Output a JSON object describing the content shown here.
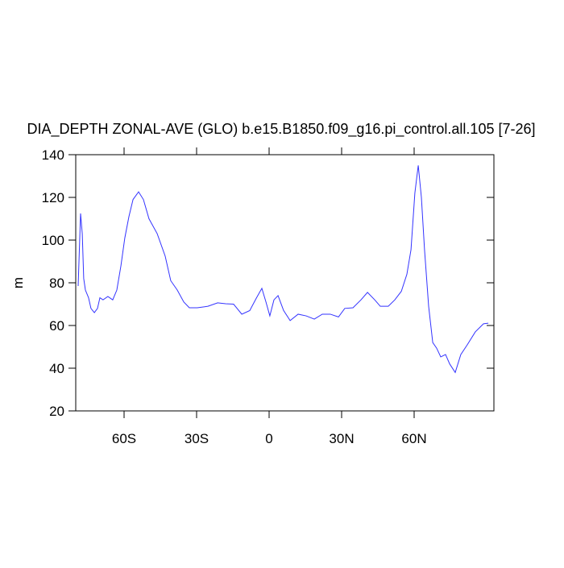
{
  "chart_data": {
    "type": "line",
    "title": "DIA_DEPTH ZONAL-AVE (GLO) b.e15.B1850.f09_g16.pi_control.all.105 [7-26]",
    "y_label": "m",
    "xlim": [
      -80,
      93
    ],
    "ylim": [
      20,
      140
    ],
    "xticks": [
      {
        "value": -60,
        "label": "60S"
      },
      {
        "value": -30,
        "label": "30S"
      },
      0,
      {
        "value": 30,
        "label": "30N"
      },
      {
        "value": 60,
        "label": "60N"
      }
    ],
    "yticks": [
      20,
      40,
      60,
      80,
      100,
      120,
      140
    ],
    "series": [
      {
        "color": "#3333ff",
        "x": [
          -79,
          -78,
          -77.3,
          -76.7,
          -76,
          -74.7,
          -73.7,
          -72.3,
          -71,
          -70,
          -68.7,
          -66.7,
          -64.7,
          -63,
          -61.3,
          -59.7,
          -58,
          -56.3,
          -54,
          -52,
          -49.7,
          -46.3,
          -43,
          -40.7,
          -38,
          -35.3,
          -33,
          -29.7,
          -25.3,
          -21.3,
          -18,
          -14.7,
          -11.3,
          -8,
          -5.3,
          -3,
          -1.3,
          0.3,
          2,
          3.7,
          6,
          8.7,
          12,
          15.3,
          18.7,
          22,
          25.3,
          28.7,
          31.3,
          34.7,
          38,
          40.7,
          43.7,
          46,
          49.3,
          52,
          54.7,
          57,
          58.7,
          60.3,
          61.7,
          63,
          64.3,
          66,
          67.7,
          69.3,
          71,
          73,
          74.7,
          77,
          79.3,
          82,
          85.3,
          88.7,
          90.7
        ],
        "values": [
          78.5,
          112.5,
          103,
          82,
          76.6,
          73,
          68,
          66,
          68,
          73,
          72,
          73.6,
          72,
          76.6,
          88,
          101,
          111,
          119,
          122.6,
          119,
          110,
          103,
          92.5,
          81,
          76.6,
          71,
          68.3,
          68.3,
          69,
          70.6,
          70.2,
          70,
          65.3,
          67,
          72.8,
          77.4,
          71,
          64.5,
          72,
          74,
          67,
          62.3,
          65.3,
          64.5,
          63,
          65.3,
          65.3,
          64,
          68,
          68.3,
          72,
          75.5,
          72,
          69,
          69,
          72,
          76,
          84,
          95.5,
          122,
          135,
          120,
          95.5,
          69,
          52,
          49.4,
          45.3,
          46.4,
          42,
          38,
          46.4,
          51,
          57,
          60.8,
          61.1
        ]
      }
    ]
  }
}
